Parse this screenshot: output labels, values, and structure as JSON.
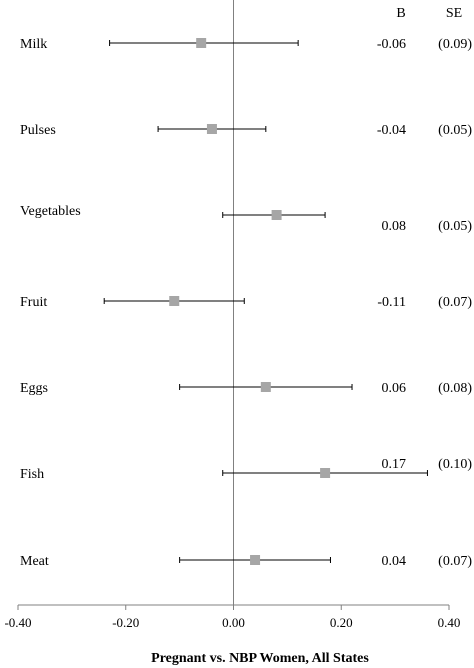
{
  "chart_data": {
    "type": "forest",
    "xlabel": "Pregnant vs. NBP Women, All States",
    "xlim": [
      -0.4,
      0.4
    ],
    "xticks": [
      -0.4,
      -0.2,
      0.0,
      0.2,
      0.4
    ],
    "xtick_labels": [
      "-0.40",
      "-0.20",
      "0.00",
      "0.20",
      "0.40"
    ],
    "column_headers": {
      "b": "B",
      "se": "SE"
    },
    "marker_color": "#a6a6a6",
    "line_color": "#000000",
    "rows": [
      {
        "label": "Milk",
        "b": -0.06,
        "lo": -0.23,
        "hi": 0.12,
        "b_label": "-0.06",
        "se_label": "(0.09)"
      },
      {
        "label": "Pulses",
        "b": -0.04,
        "lo": -0.14,
        "hi": 0.06,
        "b_label": "-0.04",
        "se_label": "(0.05)"
      },
      {
        "label": "Vegetables",
        "b": 0.08,
        "lo": -0.02,
        "hi": 0.17,
        "b_label": "0.08",
        "se_label": "(0.05)"
      },
      {
        "label": "Fruit",
        "b": -0.11,
        "lo": -0.24,
        "hi": 0.02,
        "b_label": "-0.11",
        "se_label": "(0.07)"
      },
      {
        "label": "Eggs",
        "b": 0.06,
        "lo": -0.1,
        "hi": 0.22,
        "b_label": "0.06",
        "se_label": "(0.08)"
      },
      {
        "label": "Fish",
        "b": 0.17,
        "lo": -0.02,
        "hi": 0.36,
        "b_label": "0.17",
        "se_label": "(0.10)"
      },
      {
        "label": "Meat",
        "b": 0.04,
        "lo": -0.1,
        "hi": 0.18,
        "b_label": "0.04",
        "se_label": "(0.07)"
      }
    ]
  }
}
